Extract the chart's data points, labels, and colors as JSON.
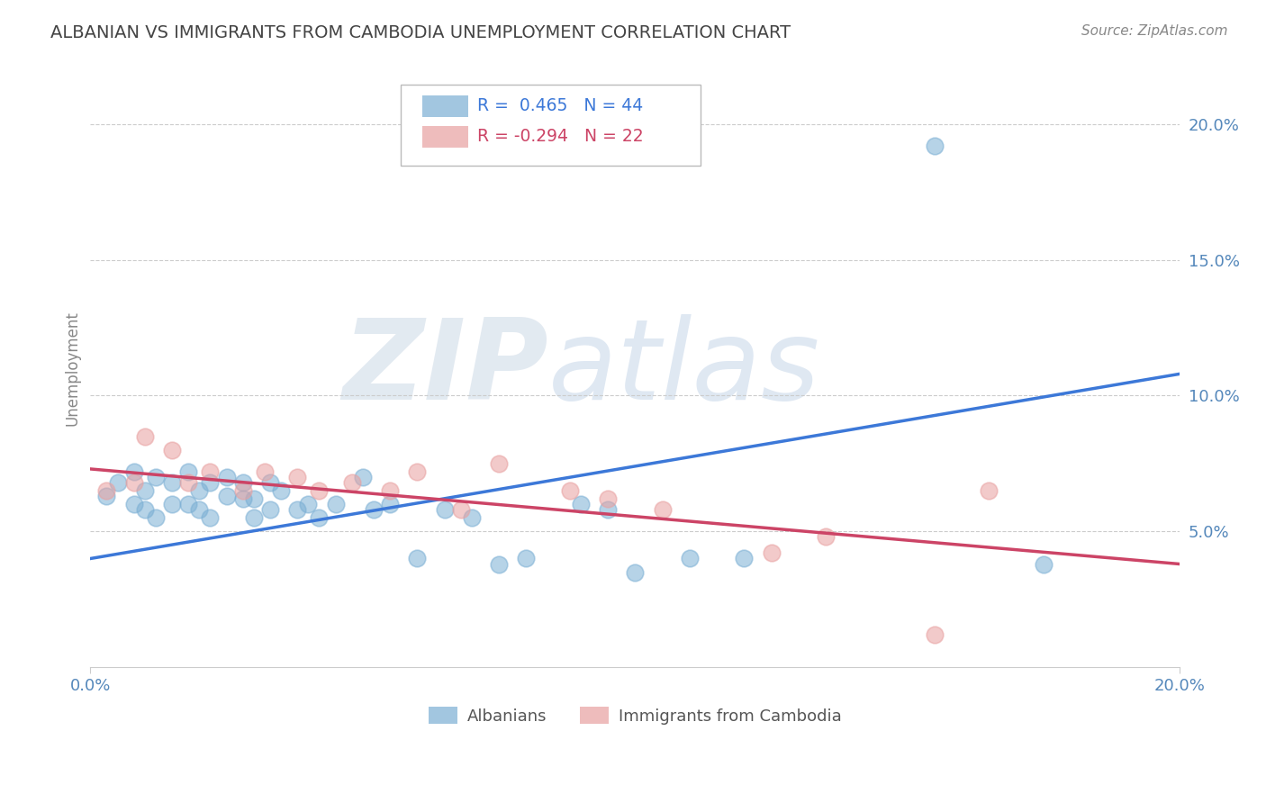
{
  "title": "ALBANIAN VS IMMIGRANTS FROM CAMBODIA UNEMPLOYMENT CORRELATION CHART",
  "source": "Source: ZipAtlas.com",
  "ylabel": "Unemployment",
  "xlim": [
    0.0,
    0.2
  ],
  "ylim": [
    0.0,
    0.22
  ],
  "ytick_labels": [
    "5.0%",
    "10.0%",
    "15.0%",
    "20.0%"
  ],
  "ytick_values": [
    0.05,
    0.1,
    0.15,
    0.2
  ],
  "xtick_labels": [
    "0.0%",
    "20.0%"
  ],
  "xtick_values": [
    0.0,
    0.2
  ],
  "blue_color": "#7bafd4",
  "pink_color": "#e8a0a0",
  "blue_line_color": "#3c78d8",
  "pink_line_color": "#cc4466",
  "legend_r_blue": "R =  0.465",
  "legend_n_blue": "N = 44",
  "legend_r_pink": "R = -0.294",
  "legend_n_pink": "N = 22",
  "watermark_zip": "ZIP",
  "watermark_atlas": "atlas",
  "blue_scatter_x": [
    0.003,
    0.005,
    0.008,
    0.008,
    0.01,
    0.01,
    0.012,
    0.012,
    0.015,
    0.015,
    0.018,
    0.018,
    0.02,
    0.02,
    0.022,
    0.022,
    0.025,
    0.025,
    0.028,
    0.028,
    0.03,
    0.03,
    0.033,
    0.033,
    0.035,
    0.038,
    0.04,
    0.042,
    0.045,
    0.05,
    0.052,
    0.055,
    0.06,
    0.065,
    0.07,
    0.075,
    0.08,
    0.09,
    0.095,
    0.1,
    0.11,
    0.12,
    0.155,
    0.175
  ],
  "blue_scatter_y": [
    0.063,
    0.068,
    0.06,
    0.072,
    0.058,
    0.065,
    0.055,
    0.07,
    0.06,
    0.068,
    0.06,
    0.072,
    0.058,
    0.065,
    0.068,
    0.055,
    0.063,
    0.07,
    0.062,
    0.068,
    0.055,
    0.062,
    0.068,
    0.058,
    0.065,
    0.058,
    0.06,
    0.055,
    0.06,
    0.07,
    0.058,
    0.06,
    0.04,
    0.058,
    0.055,
    0.038,
    0.04,
    0.06,
    0.058,
    0.035,
    0.04,
    0.04,
    0.192,
    0.038
  ],
  "pink_scatter_x": [
    0.003,
    0.008,
    0.01,
    0.015,
    0.018,
    0.022,
    0.028,
    0.032,
    0.038,
    0.042,
    0.048,
    0.055,
    0.06,
    0.068,
    0.075,
    0.088,
    0.095,
    0.105,
    0.125,
    0.135,
    0.155,
    0.165
  ],
  "pink_scatter_y": [
    0.065,
    0.068,
    0.085,
    0.08,
    0.068,
    0.072,
    0.065,
    0.072,
    0.07,
    0.065,
    0.068,
    0.065,
    0.072,
    0.058,
    0.075,
    0.065,
    0.062,
    0.058,
    0.042,
    0.048,
    0.012,
    0.065
  ],
  "blue_line_x": [
    0.0,
    0.2
  ],
  "blue_line_y": [
    0.04,
    0.108
  ],
  "pink_line_x": [
    0.0,
    0.2
  ],
  "pink_line_y": [
    0.073,
    0.038
  ],
  "grid_color": "#cccccc",
  "background_color": "#ffffff",
  "title_color": "#444444",
  "tick_label_color": "#5588bb"
}
